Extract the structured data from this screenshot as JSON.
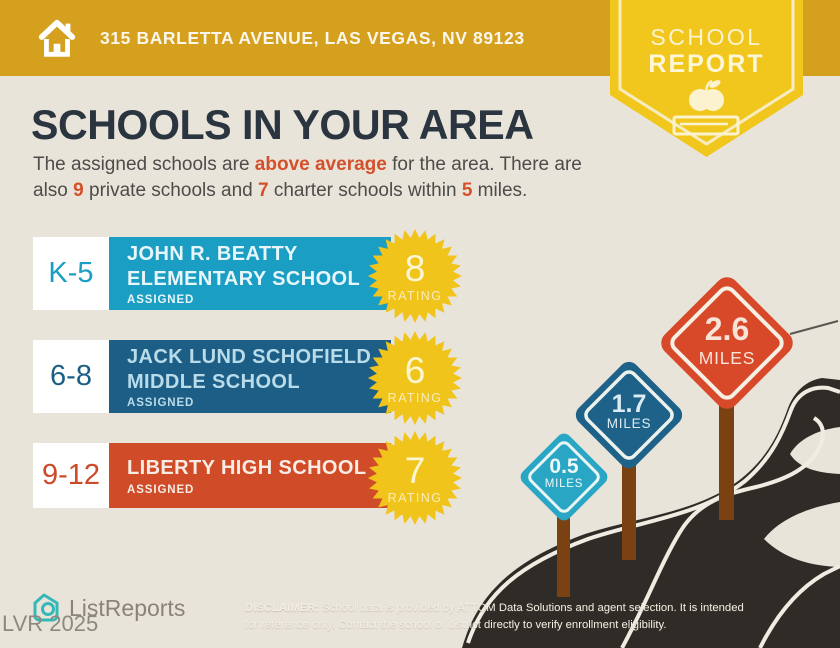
{
  "header": {
    "address": "315 BARLETTA AVENUE, LAS VEGAS, NV 89123"
  },
  "badge": {
    "line1": "SCHOOL",
    "line2": "REPORT",
    "icon": "apple-on-book-icon"
  },
  "title": "SCHOOLS IN YOUR AREA",
  "intro": {
    "part1": "The assigned schools are ",
    "bold1": "above average",
    "part2": " for the area. There are",
    "part3": "also ",
    "bold2": "9",
    "part4": " private schools and ",
    "bold3": "7",
    "part5": " charter schools within ",
    "bold4": "5",
    "part6": " miles."
  },
  "schools": [
    {
      "grades": "K-5",
      "name_line1": "JOHN R. BEATTY",
      "name_line2": "ELEMENTARY SCHOOL",
      "status": "ASSIGNED",
      "rating": "8",
      "rating_label": "RATING",
      "bar_color": "#1b9ec3",
      "distance_miles": "0.5"
    },
    {
      "grades": "6-8",
      "name_line1": "JACK LUND SCHOFIELD",
      "name_line2": "MIDDLE SCHOOL",
      "status": "ASSIGNED",
      "rating": "6",
      "rating_label": "RATING",
      "bar_color": "#1d5e86",
      "distance_miles": "1.7"
    },
    {
      "grades": "9-12",
      "name_line1": "LIBERTY HIGH SCHOOL",
      "name_line2": "",
      "status": "ASSIGNED",
      "rating": "7",
      "rating_label": "RATING",
      "bar_color": "#d04b28",
      "distance_miles": "2.6"
    }
  ],
  "signs": [
    {
      "value": "0.5",
      "unit": "MILES",
      "color": "#2aa6c5"
    },
    {
      "value": "1.7",
      "unit": "MILES",
      "color": "#1e6289"
    },
    {
      "value": "2.6",
      "unit": "MILES",
      "color": "#d8492a"
    }
  ],
  "footer": {
    "brand": "ListReports",
    "brand_icon": "house-pin-icon",
    "watermark": "LVR 2025",
    "disclaimer_label": "DISCLAIMER:",
    "disclaimer_line1": " School data is provided by ATTOM Data Solutions and agent selection. It is intended",
    "disclaimer_line2": "for reference only. Contact the school or district directly to verify enrollment eligibility."
  },
  "colors": {
    "background": "#e9e4da",
    "header_gold": "#d5a01e",
    "badge_yellow": "#f2c71d",
    "badge_cream": "#fbf3d0",
    "title_navy": "#2a3540",
    "body_gray": "#4d4c4a",
    "accent_orange": "#d4502a",
    "teal": "#1b9ec3",
    "dark_blue": "#1d5e86",
    "red_orange": "#d04b28",
    "burst_yellow": "#f1c41c",
    "road_dark": "#2f2b27",
    "road_line": "#f1ece1",
    "post_brown": "#7a4113",
    "logo_teal": "#35b8b8"
  }
}
